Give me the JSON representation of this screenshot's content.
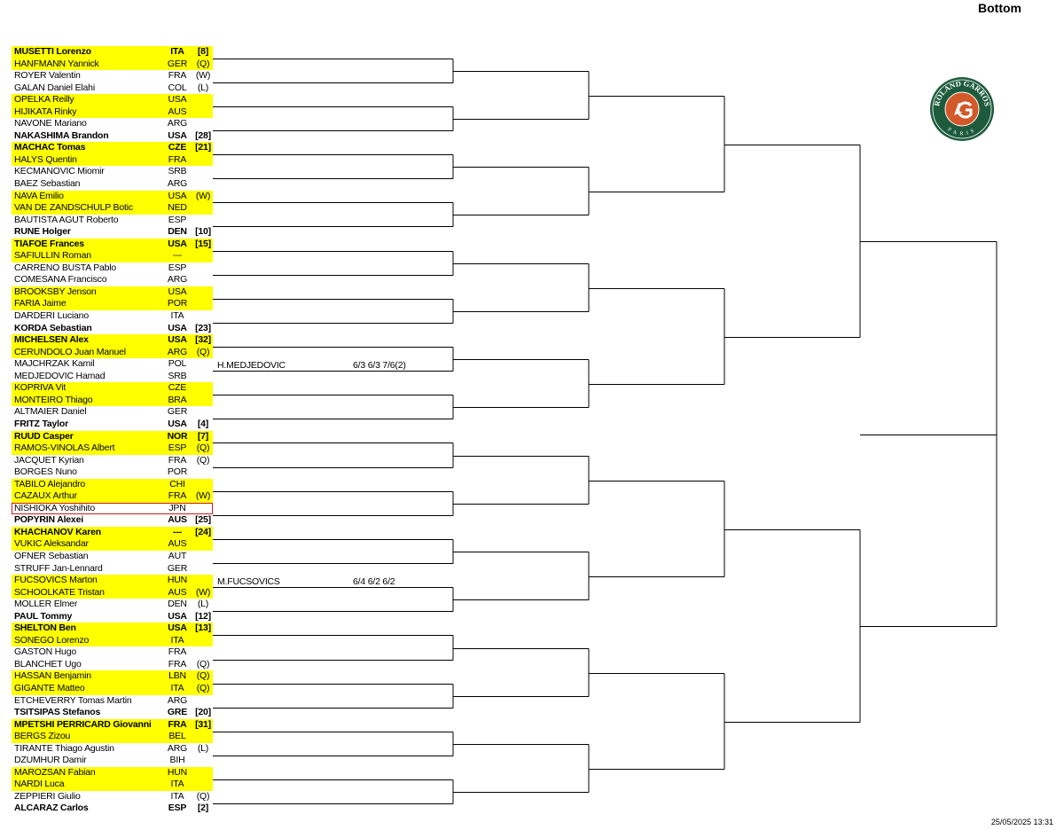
{
  "header": {
    "title": "Bottom"
  },
  "footer": {
    "timestamp": "25/05/2025 13:31"
  },
  "logo": {
    "text_top": "ROLAND GARROS",
    "text_bottom": "PARIS",
    "colors": {
      "ring": "#1e5b3d",
      "center": "#d2592a"
    }
  },
  "colors": {
    "highlight": "#ffff00",
    "selected_outline": "#d0181e"
  },
  "players": [
    {
      "name": "MUSETTI Lorenzo",
      "country": "ITA",
      "tag": "[8]",
      "seeded": true
    },
    {
      "name": "HANFMANN Yannick",
      "country": "GER",
      "tag": "(Q)",
      "seeded": false
    },
    {
      "name": "ROYER Valentin",
      "country": "FRA",
      "tag": "(W)",
      "seeded": false
    },
    {
      "name": "GALAN Daniel Elahi",
      "country": "COL",
      "tag": "(L)",
      "seeded": false
    },
    {
      "name": "OPELKA Reilly",
      "country": "USA",
      "tag": "",
      "seeded": false
    },
    {
      "name": "HIJIKATA Rinky",
      "country": "AUS",
      "tag": "",
      "seeded": false
    },
    {
      "name": "NAVONE Mariano",
      "country": "ARG",
      "tag": "",
      "seeded": false
    },
    {
      "name": "NAKASHIMA Brandon",
      "country": "USA",
      "tag": "[28]",
      "seeded": true
    },
    {
      "name": "MACHAC Tomas",
      "country": "CZE",
      "tag": "[21]",
      "seeded": true
    },
    {
      "name": "HALYS Quentin",
      "country": "FRA",
      "tag": "",
      "seeded": false
    },
    {
      "name": "KECMANOVIC Miomir",
      "country": "SRB",
      "tag": "",
      "seeded": false
    },
    {
      "name": "BAEZ Sebastian",
      "country": "ARG",
      "tag": "",
      "seeded": false
    },
    {
      "name": "NAVA Emilio",
      "country": "USA",
      "tag": "(W)",
      "seeded": false
    },
    {
      "name": "VAN DE ZANDSCHULP Botic",
      "country": "NED",
      "tag": "",
      "seeded": false
    },
    {
      "name": "BAUTISTA AGUT Roberto",
      "country": "ESP",
      "tag": "",
      "seeded": false
    },
    {
      "name": "RUNE Holger",
      "country": "DEN",
      "tag": "[10]",
      "seeded": true
    },
    {
      "name": "TIAFOE Frances",
      "country": "USA",
      "tag": "[15]",
      "seeded": true
    },
    {
      "name": "SAFIULLIN Roman",
      "country": "---",
      "tag": "",
      "seeded": false
    },
    {
      "name": "CARRENO BUSTA Pablo",
      "country": "ESP",
      "tag": "",
      "seeded": false
    },
    {
      "name": "COMESANA Francisco",
      "country": "ARG",
      "tag": "",
      "seeded": false
    },
    {
      "name": "BROOKSBY Jenson",
      "country": "USA",
      "tag": "",
      "seeded": false
    },
    {
      "name": "FARIA Jaime",
      "country": "POR",
      "tag": "",
      "seeded": false
    },
    {
      "name": "DARDERI Luciano",
      "country": "ITA",
      "tag": "",
      "seeded": false
    },
    {
      "name": "KORDA Sebastian",
      "country": "USA",
      "tag": "[23]",
      "seeded": true
    },
    {
      "name": "MICHELSEN Alex",
      "country": "USA",
      "tag": "[32]",
      "seeded": true
    },
    {
      "name": "CERUNDOLO Juan Manuel",
      "country": "ARG",
      "tag": "(Q)",
      "seeded": false
    },
    {
      "name": "MAJCHRZAK Kamil",
      "country": "POL",
      "tag": "",
      "seeded": false
    },
    {
      "name": "MEDJEDOVIC Hamad",
      "country": "SRB",
      "tag": "",
      "seeded": false
    },
    {
      "name": "KOPRIVA Vit",
      "country": "CZE",
      "tag": "",
      "seeded": false
    },
    {
      "name": "MONTEIRO Thiago",
      "country": "BRA",
      "tag": "",
      "seeded": false
    },
    {
      "name": "ALTMAIER Daniel",
      "country": "GER",
      "tag": "",
      "seeded": false
    },
    {
      "name": "FRITZ Taylor",
      "country": "USA",
      "tag": "[4]",
      "seeded": true
    },
    {
      "name": "RUUD Casper",
      "country": "NOR",
      "tag": "[7]",
      "seeded": true
    },
    {
      "name": "RAMOS-VINOLAS Albert",
      "country": "ESP",
      "tag": "(Q)",
      "seeded": false
    },
    {
      "name": "JACQUET Kyrian",
      "country": "FRA",
      "tag": "(Q)",
      "seeded": false
    },
    {
      "name": "BORGES Nuno",
      "country": "POR",
      "tag": "",
      "seeded": false
    },
    {
      "name": "TABILO Alejandro",
      "country": "CHI",
      "tag": "",
      "seeded": false
    },
    {
      "name": "CAZAUX Arthur",
      "country": "FRA",
      "tag": "(W)",
      "seeded": false
    },
    {
      "name": "NISHIOKA Yoshihito",
      "country": "JPN",
      "tag": "",
      "seeded": false,
      "selected": true
    },
    {
      "name": "POPYRIN Alexei",
      "country": "AUS",
      "tag": "[25]",
      "seeded": true
    },
    {
      "name": "KHACHANOV Karen",
      "country": "---",
      "tag": "[24]",
      "seeded": true
    },
    {
      "name": "VUKIC Aleksandar",
      "country": "AUS",
      "tag": "",
      "seeded": false
    },
    {
      "name": "OFNER Sebastian",
      "country": "AUT",
      "tag": "",
      "seeded": false
    },
    {
      "name": "STRUFF Jan-Lennard",
      "country": "GER",
      "tag": "",
      "seeded": false
    },
    {
      "name": "FUCSOVICS Marton",
      "country": "HUN",
      "tag": "",
      "seeded": false
    },
    {
      "name": "SCHOOLKATE Tristan",
      "country": "AUS",
      "tag": "(W)",
      "seeded": false
    },
    {
      "name": "MOLLER Elmer",
      "country": "DEN",
      "tag": "(L)",
      "seeded": false
    },
    {
      "name": "PAUL Tommy",
      "country": "USA",
      "tag": "[12]",
      "seeded": true
    },
    {
      "name": "SHELTON Ben",
      "country": "USA",
      "tag": "[13]",
      "seeded": true
    },
    {
      "name": "SONEGO Lorenzo",
      "country": "ITA",
      "tag": "",
      "seeded": false
    },
    {
      "name": "GASTON Hugo",
      "country": "FRA",
      "tag": "",
      "seeded": false
    },
    {
      "name": "BLANCHET Ugo",
      "country": "FRA",
      "tag": "(Q)",
      "seeded": false
    },
    {
      "name": "HASSAN Benjamin",
      "country": "LBN",
      "tag": "(Q)",
      "seeded": false
    },
    {
      "name": "GIGANTE Matteo",
      "country": "ITA",
      "tag": "(Q)",
      "seeded": false
    },
    {
      "name": "ETCHEVERRY Tomas Martin",
      "country": "ARG",
      "tag": "",
      "seeded": false
    },
    {
      "name": "TSITSIPAS Stefanos",
      "country": "GRE",
      "tag": "[20]",
      "seeded": true
    },
    {
      "name": "MPETSHI PERRICARD Giovanni",
      "country": "FRA",
      "tag": "[31]",
      "seeded": true
    },
    {
      "name": "BERGS Zizou",
      "country": "BEL",
      "tag": "",
      "seeded": false
    },
    {
      "name": "TIRANTE Thiago Agustin",
      "country": "ARG",
      "tag": "(L)",
      "seeded": false
    },
    {
      "name": "DZUMHUR Damir",
      "country": "BIH",
      "tag": "",
      "seeded": false
    },
    {
      "name": "MAROZSAN Fabian",
      "country": "HUN",
      "tag": "",
      "seeded": false
    },
    {
      "name": "NARDI Luca",
      "country": "ITA",
      "tag": "",
      "seeded": false
    },
    {
      "name": "ZEPPIERI Giulio",
      "country": "ITA",
      "tag": "(Q)",
      "seeded": false
    },
    {
      "name": "ALCARAZ Carlos",
      "country": "ESP",
      "tag": "[2]",
      "seeded": true
    }
  ],
  "results": [
    {
      "match": 13,
      "winner": "H.MEDJEDOVIC",
      "score": "6/3 6/3 7/6(2)"
    },
    {
      "match": 22,
      "winner": "M.FUCSOVICS",
      "score": "6/4 6/2 6/2"
    }
  ]
}
